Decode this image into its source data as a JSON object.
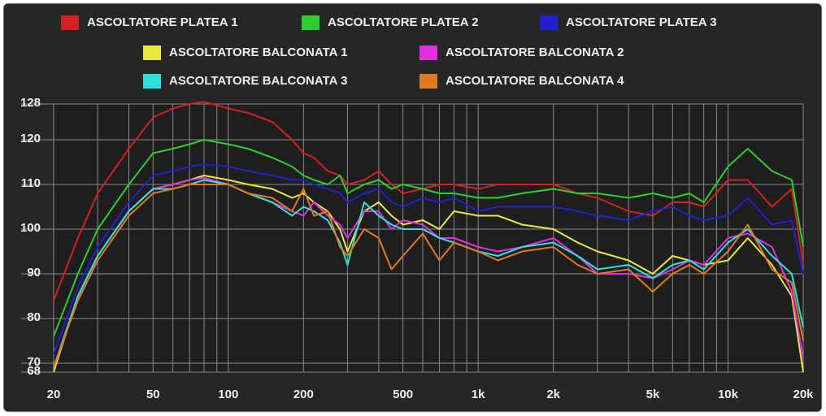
{
  "chart_data": {
    "type": "line",
    "xscale": "log",
    "x": [
      20,
      25,
      30,
      40,
      50,
      60,
      70,
      80,
      100,
      120,
      150,
      180,
      200,
      220,
      250,
      280,
      300,
      350,
      400,
      450,
      500,
      600,
      700,
      800,
      1000,
      1200,
      1500,
      2000,
      2500,
      3000,
      4000,
      5000,
      6000,
      7000,
      8000,
      10000,
      12000,
      15000,
      18000,
      20000
    ],
    "series": [
      {
        "name": "ASCOLTATORE PLATEA 1",
        "color": "#d42020",
        "values": [
          84,
          98,
          108,
          118,
          125,
          127,
          128,
          128.5,
          127,
          126,
          124,
          120,
          117,
          116,
          113,
          112,
          110,
          111,
          113,
          110,
          108,
          109,
          110,
          110,
          109,
          110,
          110,
          110,
          108,
          107,
          104,
          103,
          106,
          106,
          105,
          111,
          111,
          105,
          109,
          92
        ]
      },
      {
        "name": "ASCOLTATORE PLATEA 2",
        "color": "#2ccf2c",
        "values": [
          76,
          90,
          100,
          110,
          117,
          118,
          119,
          120,
          119,
          118,
          116,
          114,
          112,
          111,
          110,
          112,
          108,
          110,
          111,
          109,
          110,
          109,
          108,
          108,
          107,
          107,
          108,
          109,
          108,
          108,
          107,
          108,
          107,
          108,
          106,
          114,
          118,
          113,
          111,
          96
        ]
      },
      {
        "name": "ASCOLTATORE PLATEA 3",
        "color": "#2020d0",
        "values": [
          72,
          87,
          96,
          106,
          112,
          113,
          114,
          114.5,
          114,
          113,
          112,
          111,
          111,
          110,
          109,
          108,
          106,
          108,
          109,
          106,
          105,
          107,
          106,
          107,
          104,
          105,
          105,
          105,
          104,
          103,
          102,
          104,
          105,
          103,
          102,
          103,
          107,
          101,
          102,
          90
        ]
      },
      {
        "name": "ASCOLTATORE BALCONATA 1",
        "color": "#e8e840",
        "values": [
          68,
          85,
          94,
          104,
          109,
          110,
          111,
          112,
          111,
          110,
          109,
          107,
          108,
          106,
          104,
          100,
          95,
          104,
          106,
          103,
          101,
          102,
          100,
          104,
          103,
          103,
          101,
          100,
          97,
          95,
          93,
          90,
          94,
          93,
          92,
          93,
          98,
          92,
          85,
          68
        ]
      },
      {
        "name": "ASCOLTATORE BALCONATA 2",
        "color": "#e030e0",
        "values": [
          69,
          85,
          94,
          104,
          109,
          110,
          111,
          111.5,
          110,
          108,
          106,
          104,
          103,
          106,
          103,
          101,
          98,
          104,
          104,
          100,
          102,
          101,
          98,
          98,
          96,
          95,
          96,
          98,
          94,
          90,
          90,
          89,
          91,
          93,
          92,
          98,
          99,
          96,
          86,
          71
        ]
      },
      {
        "name": "ASCOLTATORE BALCONATA 3",
        "color": "#30e0e0",
        "values": [
          69,
          85,
          94,
          104,
          109,
          109,
          110,
          111,
          110,
          108,
          106,
          103,
          105,
          104,
          102,
          97,
          92,
          106,
          103,
          101,
          100,
          100,
          98,
          97,
          95,
          94,
          96,
          97,
          94,
          91,
          92,
          89,
          92,
          93,
          91,
          97,
          100,
          94,
          90,
          78
        ]
      },
      {
        "name": "ASCOLTATORE BALCONATA 4",
        "color": "#e07a20",
        "values": [
          69,
          84,
          93,
          103,
          108,
          109,
          110,
          110,
          110,
          108,
          107,
          104,
          109,
          103,
          104,
          96,
          94,
          100,
          98,
          91,
          94,
          99,
          93,
          97,
          95,
          93,
          95,
          96,
          92,
          90,
          91,
          86,
          90,
          92,
          90,
          95,
          101,
          91,
          88,
          75
        ]
      }
    ],
    "xlim": [
      20,
      20000
    ],
    "xticks": [
      20,
      50,
      100,
      200,
      500,
      {
        "value": 1000,
        "label": "1k"
      },
      {
        "value": 2000,
        "label": "2k"
      },
      {
        "value": 5000,
        "label": "5k"
      },
      {
        "value": 10000,
        "label": "10k"
      },
      {
        "value": 20000,
        "label": "20k"
      }
    ],
    "xminor_ticks": [
      30,
      40,
      60,
      70,
      80,
      90,
      300,
      400,
      600,
      700,
      800,
      900,
      3000,
      4000,
      6000,
      7000,
      8000,
      9000
    ],
    "ylim": [
      68,
      128
    ],
    "yticks": [
      68,
      70,
      80,
      90,
      100,
      110,
      120,
      128
    ],
    "grid": true
  }
}
